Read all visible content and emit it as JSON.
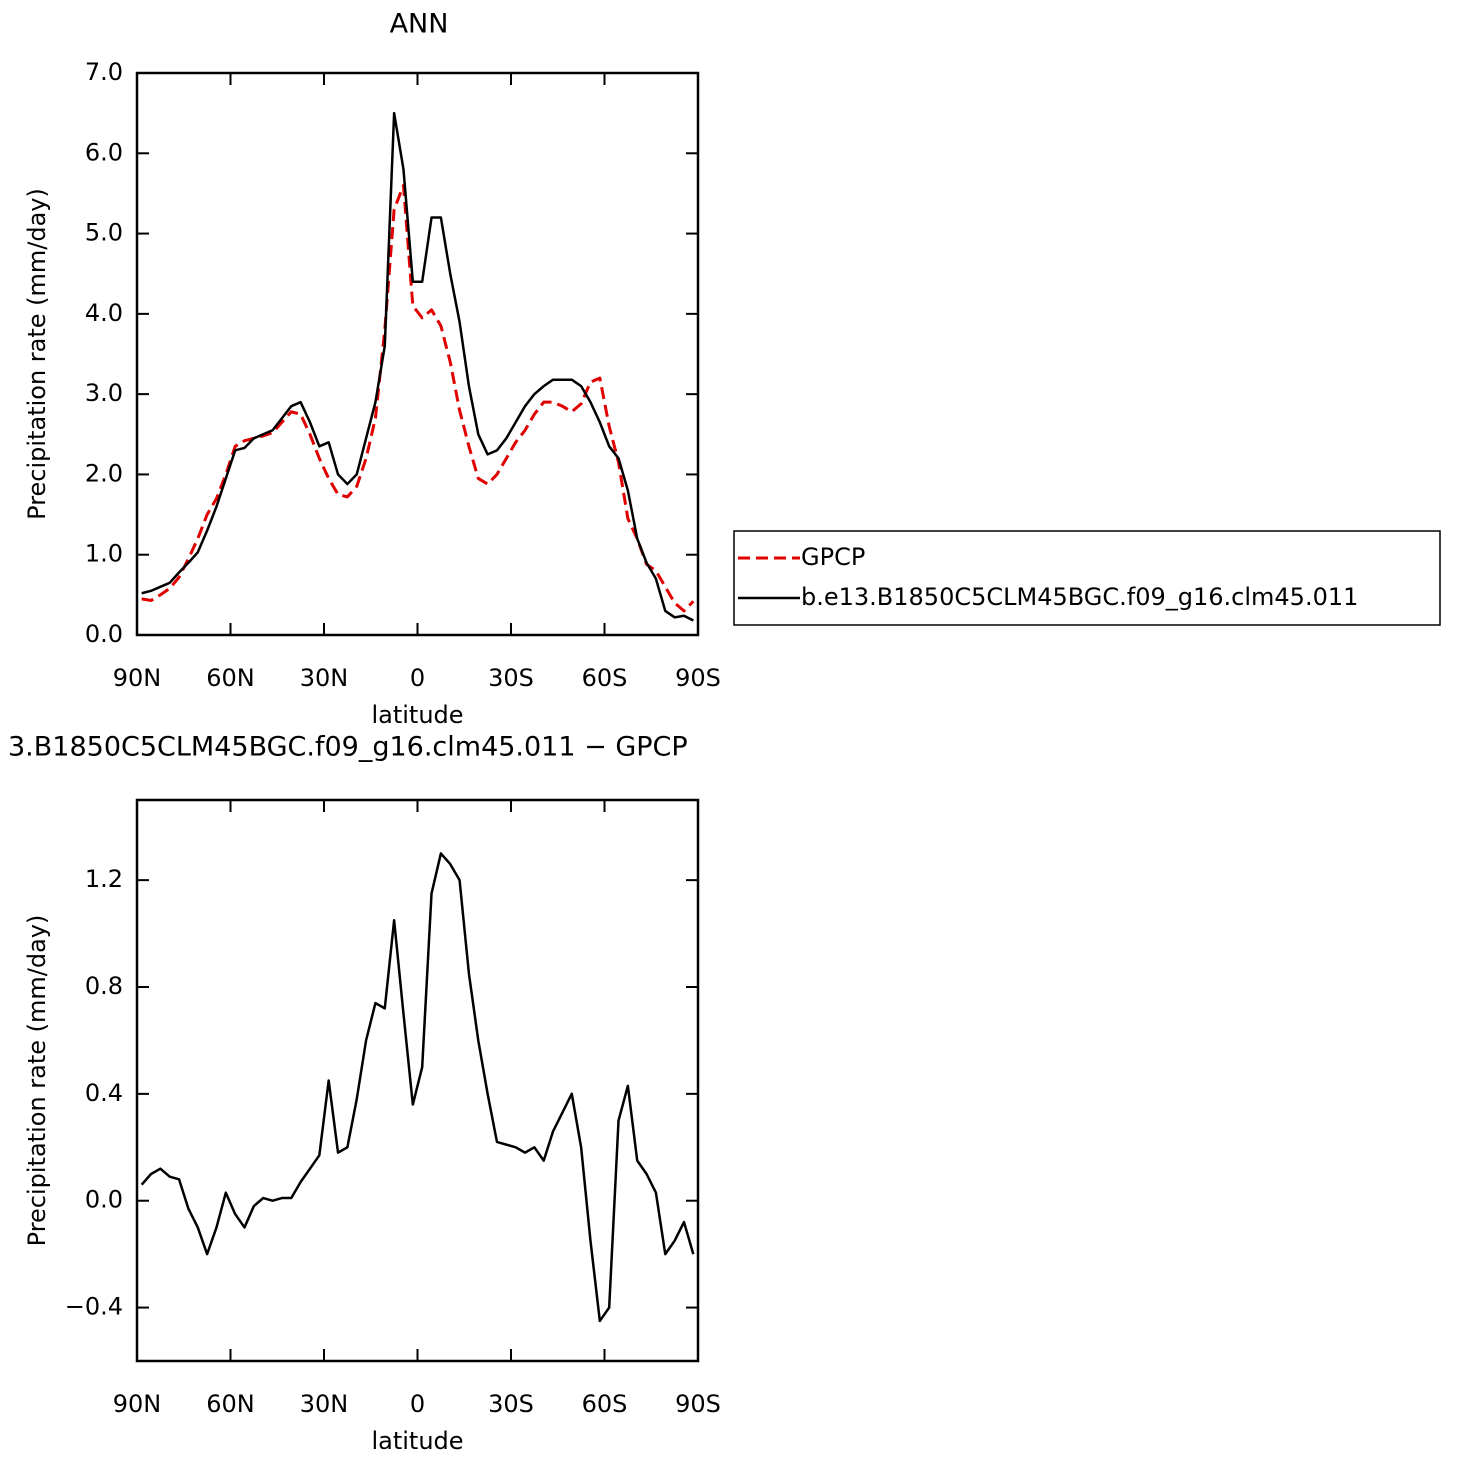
{
  "chart_data": [
    {
      "type": "line",
      "title": "ANN",
      "xlabel": "latitude",
      "ylabel": "Precipitation rate (mm/day)",
      "xlim": [
        90,
        -90
      ],
      "xticks": [
        {
          "value": 90,
          "label": "90N"
        },
        {
          "value": 60,
          "label": "60N"
        },
        {
          "value": 30,
          "label": "30N"
        },
        0,
        {
          "value": -30,
          "label": "30S"
        },
        {
          "value": -60,
          "label": "60S"
        },
        {
          "value": -90,
          "label": "90S"
        }
      ],
      "ylim": [
        0,
        7
      ],
      "yticks": [
        {
          "value": 0,
          "label": "0.0"
        },
        {
          "value": 1,
          "label": "1.0"
        },
        {
          "value": 2,
          "label": "2.0"
        },
        {
          "value": 3,
          "label": "3.0"
        },
        {
          "value": 4,
          "label": "4.0"
        },
        {
          "value": 5,
          "label": "5.0"
        },
        {
          "value": 6,
          "label": "6.0"
        },
        {
          "value": 7,
          "label": "7.0"
        }
      ],
      "legend": "right",
      "x": [
        88.5,
        85.5,
        82.5,
        79.5,
        76.5,
        73.5,
        70.5,
        67.5,
        64.5,
        61.5,
        58.5,
        55.5,
        52.5,
        49.5,
        46.5,
        43.5,
        40.5,
        37.5,
        34.5,
        31.5,
        28.5,
        25.5,
        22.5,
        19.5,
        16.5,
        13.5,
        10.5,
        7.5,
        4.5,
        1.5,
        -1.5,
        -4.5,
        -7.5,
        -10.5,
        -13.5,
        -16.5,
        -19.5,
        -22.5,
        -25.5,
        -28.5,
        -31.5,
        -34.5,
        -37.5,
        -40.5,
        -43.5,
        -46.5,
        -49.5,
        -52.5,
        -55.5,
        -58.5,
        -61.5,
        -64.5,
        -67.5,
        -70.5,
        -73.5,
        -76.5,
        -79.5,
        -82.5,
        -85.5,
        -88.5
      ],
      "series": [
        {
          "name": "GPCP",
          "color": "#e00000",
          "dashed": true,
          "values": [
            0.45,
            0.43,
            0.5,
            0.58,
            0.72,
            0.95,
            1.2,
            1.5,
            1.7,
            2.0,
            2.35,
            2.42,
            2.45,
            2.48,
            2.52,
            2.65,
            2.78,
            2.75,
            2.5,
            2.2,
            1.95,
            1.75,
            1.72,
            1.85,
            2.2,
            2.7,
            3.8,
            5.3,
            5.6,
            4.1,
            3.95,
            4.05,
            3.85,
            3.4,
            2.8,
            2.35,
            1.95,
            1.88,
            2.0,
            2.2,
            2.4,
            2.55,
            2.75,
            2.9,
            2.9,
            2.85,
            2.78,
            2.88,
            3.15,
            3.2,
            2.6,
            2.15,
            1.45,
            1.2,
            0.88,
            0.8,
            0.6,
            0.4,
            0.3,
            0.42
          ]
        },
        {
          "name": "b.e13.B1850C5CLM45BGC.f09_g16.clm45.011",
          "color": "#000000",
          "dashed": false,
          "values": [
            0.52,
            0.55,
            0.6,
            0.65,
            0.78,
            0.9,
            1.03,
            1.3,
            1.6,
            1.95,
            2.3,
            2.33,
            2.45,
            2.5,
            2.55,
            2.7,
            2.85,
            2.9,
            2.65,
            2.35,
            2.4,
            2.0,
            1.88,
            2.0,
            2.45,
            2.9,
            3.6,
            6.5,
            5.8,
            4.4,
            4.4,
            5.2,
            5.2,
            4.5,
            3.9,
            3.1,
            2.5,
            2.25,
            2.3,
            2.45,
            2.65,
            2.85,
            3.0,
            3.1,
            3.18,
            3.18,
            3.18,
            3.1,
            2.9,
            2.65,
            2.35,
            2.2,
            1.8,
            1.2,
            0.9,
            0.7,
            0.3,
            0.22,
            0.24,
            0.18
          ]
        }
      ]
    },
    {
      "type": "line",
      "title": "3.B1850C5CLM45BGC.f09_g16.clm45.011 − GPCP",
      "xlabel": "latitude",
      "ylabel": "Precipitation rate (mm/day)",
      "xlim": [
        90,
        -90
      ],
      "xticks": [
        {
          "value": 90,
          "label": "90N"
        },
        {
          "value": 60,
          "label": "60N"
        },
        {
          "value": 30,
          "label": "30N"
        },
        0,
        {
          "value": -30,
          "label": "30S"
        },
        {
          "value": -60,
          "label": "60S"
        },
        {
          "value": -90,
          "label": "90S"
        }
      ],
      "ylim": [
        -0.6,
        1.5
      ],
      "yticks": [
        {
          "value": -0.4,
          "label": "−0.4"
        },
        {
          "value": 0,
          "label": "0.0"
        },
        {
          "value": 0.4,
          "label": "0.4"
        },
        {
          "value": 0.8,
          "label": "0.8"
        },
        {
          "value": 1.2,
          "label": "1.2"
        }
      ],
      "x": [
        88.5,
        85.5,
        82.5,
        79.5,
        76.5,
        73.5,
        70.5,
        67.5,
        64.5,
        61.5,
        58.5,
        55.5,
        52.5,
        49.5,
        46.5,
        43.5,
        40.5,
        37.5,
        34.5,
        31.5,
        28.5,
        25.5,
        22.5,
        19.5,
        16.5,
        13.5,
        10.5,
        7.5,
        4.5,
        1.5,
        -1.5,
        -4.5,
        -7.5,
        -10.5,
        -13.5,
        -16.5,
        -19.5,
        -22.5,
        -25.5,
        -28.5,
        -31.5,
        -34.5,
        -37.5,
        -40.5,
        -43.5,
        -46.5,
        -49.5,
        -52.5,
        -55.5,
        -58.5,
        -61.5,
        -64.5,
        -67.5,
        -70.5,
        -73.5,
        -76.5,
        -79.5,
        -82.5,
        -85.5,
        -88.5
      ],
      "series": [
        {
          "color": "#000000",
          "dashed": false,
          "values": [
            0.06,
            0.1,
            0.12,
            0.09,
            0.08,
            -0.03,
            -0.1,
            -0.2,
            -0.1,
            0.03,
            -0.05,
            -0.1,
            -0.02,
            0.01,
            0.0,
            0.01,
            0.01,
            0.07,
            0.12,
            0.17,
            0.45,
            0.18,
            0.2,
            0.38,
            0.6,
            0.74,
            0.72,
            1.05,
            0.7,
            0.36,
            0.5,
            1.15,
            1.3,
            1.26,
            1.2,
            0.85,
            0.6,
            0.4,
            0.22,
            0.21,
            0.2,
            0.18,
            0.2,
            0.15,
            0.26,
            0.33,
            0.4,
            0.2,
            -0.15,
            -0.45,
            -0.4,
            0.3,
            0.43,
            0.15,
            0.1,
            0.03,
            -0.2,
            -0.15,
            -0.08,
            -0.2
          ]
        }
      ]
    }
  ]
}
